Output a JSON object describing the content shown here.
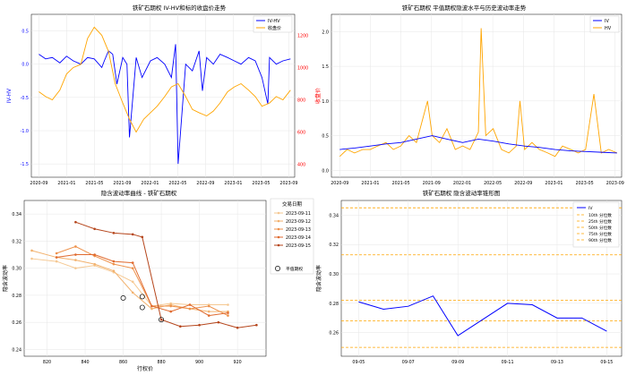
{
  "chart_data": [
    {
      "type": "line",
      "title": "铁矿石期权 IV-HV和标的收盘价走势",
      "ylabel": "IV-HV",
      "y2label": "收盘价",
      "x_ticks": [
        "2020-09",
        "2021-01",
        "2021-05",
        "2021-09",
        "2022-01",
        "2022-05",
        "2022-09",
        "2023-01",
        "2023-05",
        "2023-09"
      ],
      "y_ticks": [
        "-1.5",
        "-1.0",
        "-0.5",
        "0.0",
        "0.5"
      ],
      "y2_ticks": [
        "400",
        "600",
        "800",
        "1000",
        "1200"
      ],
      "ylim": [
        -1.7,
        0.75
      ],
      "y2lim": [
        320,
        1330
      ],
      "x_range": [
        2020.58,
        2023.72
      ],
      "colors": {
        "iv_hv": "#0000ff",
        "close": "#ffa500",
        "y2axis": "#ff0000"
      },
      "series": [
        {
          "name": "IV-HV",
          "x": [
            2020.67,
            2020.75,
            2020.83,
            2020.92,
            2021.0,
            2021.08,
            2021.17,
            2021.25,
            2021.33,
            2021.42,
            2021.45,
            2021.5,
            2021.55,
            2021.6,
            2021.67,
            2021.72,
            2021.75,
            2021.83,
            2021.9,
            2022.0,
            2022.08,
            2022.17,
            2022.25,
            2022.3,
            2022.33,
            2022.42,
            2022.5,
            2022.58,
            2022.62,
            2022.67,
            2022.75,
            2022.83,
            2022.92,
            2023.0,
            2023.08,
            2023.17,
            2023.25,
            2023.33,
            2023.4,
            2023.42,
            2023.5,
            2023.58,
            2023.67
          ],
          "values": [
            0.15,
            0.08,
            0.1,
            0.02,
            0.12,
            0.05,
            0.0,
            0.1,
            0.08,
            -0.05,
            0.05,
            0.2,
            0.15,
            -0.3,
            0.1,
            0.0,
            -1.1,
            0.1,
            -0.2,
            0.05,
            0.1,
            0.0,
            -0.2,
            0.3,
            -1.5,
            0.0,
            -0.1,
            0.2,
            -0.4,
            0.1,
            0.0,
            0.15,
            0.1,
            0.05,
            0.0,
            0.1,
            0.05,
            -0.2,
            -0.6,
            0.1,
            0.0,
            0.05,
            0.08
          ]
        },
        {
          "name": "收盘价",
          "x": [
            2020.67,
            2020.75,
            2020.83,
            2020.92,
            2021.0,
            2021.08,
            2021.17,
            2021.25,
            2021.33,
            2021.42,
            2021.5,
            2021.58,
            2021.67,
            2021.75,
            2021.83,
            2021.92,
            2022.0,
            2022.08,
            2022.17,
            2022.25,
            2022.33,
            2022.42,
            2022.5,
            2022.58,
            2022.67,
            2022.75,
            2022.83,
            2022.92,
            2023.0,
            2023.08,
            2023.17,
            2023.25,
            2023.33,
            2023.42,
            2023.5,
            2023.58,
            2023.67
          ],
          "values": [
            850,
            820,
            800,
            860,
            960,
            1000,
            1020,
            1180,
            1250,
            1200,
            1100,
            900,
            780,
            680,
            600,
            680,
            720,
            760,
            820,
            880,
            900,
            820,
            740,
            720,
            700,
            730,
            780,
            850,
            880,
            900,
            860,
            820,
            760,
            780,
            820,
            800,
            860
          ]
        }
      ],
      "legend": [
        "IV-HV",
        "收盘价"
      ]
    },
    {
      "type": "line",
      "title": "铁矿石期权 平值期权隐波水平与历史波动率走势",
      "x_ticks": [
        "2020-09",
        "2021-01",
        "2021-05",
        "2021-09",
        "2022-01",
        "2022-05",
        "2022-09",
        "2023-01",
        "2023-05",
        "2023-09"
      ],
      "y_ticks": [
        "0.0",
        "0.5",
        "1.0",
        "1.5",
        "2.0"
      ],
      "ylim": [
        -0.1,
        2.25
      ],
      "x_range": [
        2020.58,
        2023.72
      ],
      "colors": {
        "iv": "#0000ff",
        "hv": "#ffa500"
      },
      "series": [
        {
          "name": "IV",
          "x": [
            2020.67,
            2020.83,
            2021.0,
            2021.17,
            2021.33,
            2021.5,
            2021.67,
            2021.83,
            2022.0,
            2022.17,
            2022.33,
            2022.5,
            2022.67,
            2022.83,
            2023.0,
            2023.17,
            2023.33,
            2023.5,
            2023.67
          ],
          "values": [
            0.3,
            0.32,
            0.35,
            0.38,
            0.4,
            0.45,
            0.5,
            0.45,
            0.4,
            0.45,
            0.42,
            0.38,
            0.35,
            0.33,
            0.3,
            0.28,
            0.27,
            0.26,
            0.25
          ]
        },
        {
          "name": "HV",
          "x": [
            2020.67,
            2020.75,
            2020.83,
            2020.92,
            2021.0,
            2021.08,
            2021.17,
            2021.25,
            2021.33,
            2021.42,
            2021.5,
            2021.58,
            2021.62,
            2021.67,
            2021.75,
            2021.83,
            2021.92,
            2022.0,
            2022.08,
            2022.17,
            2022.2,
            2022.25,
            2022.33,
            2022.42,
            2022.5,
            2022.58,
            2022.62,
            2022.67,
            2022.75,
            2022.83,
            2022.92,
            2023.0,
            2023.08,
            2023.17,
            2023.25,
            2023.33,
            2023.42,
            2023.5,
            2023.58,
            2023.67
          ],
          "values": [
            0.2,
            0.3,
            0.25,
            0.3,
            0.3,
            0.35,
            0.4,
            0.3,
            0.35,
            0.5,
            0.4,
            0.8,
            1.0,
            0.5,
            0.4,
            0.6,
            0.3,
            0.35,
            0.3,
            0.55,
            2.05,
            0.5,
            0.6,
            0.3,
            0.25,
            0.35,
            1.0,
            0.3,
            0.4,
            0.3,
            0.25,
            0.2,
            0.35,
            0.3,
            0.25,
            0.3,
            1.1,
            0.25,
            0.3,
            0.25
          ]
        }
      ],
      "legend": [
        "IV",
        "HV"
      ]
    },
    {
      "type": "line",
      "title": "隐含波动率曲线 - 铁矿石期权",
      "xlabel": "行权价",
      "ylabel": "隐含波动率",
      "x_ticks": [
        "820",
        "840",
        "860",
        "880",
        "900",
        "920"
      ],
      "y_ticks": [
        "0.24",
        "0.26",
        "0.28",
        "0.30",
        "0.32",
        "0.34"
      ],
      "xlim": [
        808,
        935
      ],
      "ylim": [
        0.235,
        0.35
      ],
      "legend_title": "交易日期",
      "series": [
        {
          "name": "2023-09-11",
          "color": "#f5c892",
          "x": [
            812,
            825,
            835,
            845,
            855,
            865,
            875,
            885,
            895,
            905,
            915
          ],
          "values": [
            0.307,
            0.305,
            0.3,
            0.302,
            0.297,
            0.29,
            0.272,
            0.274,
            0.273,
            0.273,
            0.273
          ]
        },
        {
          "name": "2023-09-12",
          "color": "#f2b26f",
          "x": [
            812,
            825,
            835,
            845,
            855,
            865,
            875,
            885,
            895,
            905,
            915
          ],
          "values": [
            0.313,
            0.308,
            0.306,
            0.303,
            0.298,
            0.282,
            0.27,
            0.273,
            0.27,
            0.268,
            0.268
          ]
        },
        {
          "name": "2023-09-13",
          "color": "#ee914a",
          "x": [
            825,
            835,
            845,
            855,
            865,
            875,
            885,
            895,
            905,
            915
          ],
          "values": [
            0.311,
            0.316,
            0.309,
            0.303,
            0.3,
            0.272,
            0.272,
            0.27,
            0.272,
            0.265
          ]
        },
        {
          "name": "2023-09-14",
          "color": "#e06a2f",
          "x": [
            825,
            835,
            845,
            855,
            865,
            875,
            885,
            895,
            905,
            915
          ],
          "values": [
            0.308,
            0.31,
            0.31,
            0.305,
            0.304,
            0.272,
            0.268,
            0.273,
            0.265,
            0.267
          ]
        },
        {
          "name": "2023-09-15",
          "color": "#b5451b",
          "x": [
            835,
            845,
            855,
            865,
            870,
            880,
            890,
            900,
            910,
            920,
            930
          ],
          "values": [
            0.334,
            0.329,
            0.326,
            0.325,
            0.323,
            0.262,
            0.257,
            0.258,
            0.26,
            0.256,
            0.258
          ]
        }
      ],
      "atm_points": {
        "name": "平值期权",
        "x": [
          860,
          870,
          870,
          880
        ],
        "values": [
          0.278,
          0.279,
          0.271,
          0.262
        ]
      },
      "atm_color": "#000000"
    },
    {
      "type": "line",
      "title": "铁矿石期权 隐含波动率锥形图",
      "ylabel": "隐含波动率",
      "x_ticks": [
        "09-05",
        "09-07",
        "09-09",
        "09-11",
        "09-13",
        "09-15"
      ],
      "y_ticks": [
        "0.26",
        "0.28",
        "0.30",
        "0.32",
        "0.34"
      ],
      "xlim": [
        4.3,
        15.6
      ],
      "ylim": [
        0.244,
        0.35
      ],
      "iv_color": "#0000ff",
      "pct_color": "#ffa500",
      "iv": {
        "name": "IV",
        "x": [
          5,
          6,
          7,
          8,
          9,
          11,
          12,
          13,
          14,
          15
        ],
        "values": [
          0.281,
          0.276,
          0.278,
          0.285,
          0.258,
          0.28,
          0.279,
          0.27,
          0.27,
          0.261
        ]
      },
      "percentiles": [
        {
          "name": "10th 分位数",
          "value": 0.25
        },
        {
          "name": "25th 分位数",
          "value": 0.268
        },
        {
          "name": "50th 分位数",
          "value": 0.282
        },
        {
          "name": "75th 分位数",
          "value": 0.313
        },
        {
          "name": "90th 分位数",
          "value": 0.345
        }
      ]
    }
  ]
}
